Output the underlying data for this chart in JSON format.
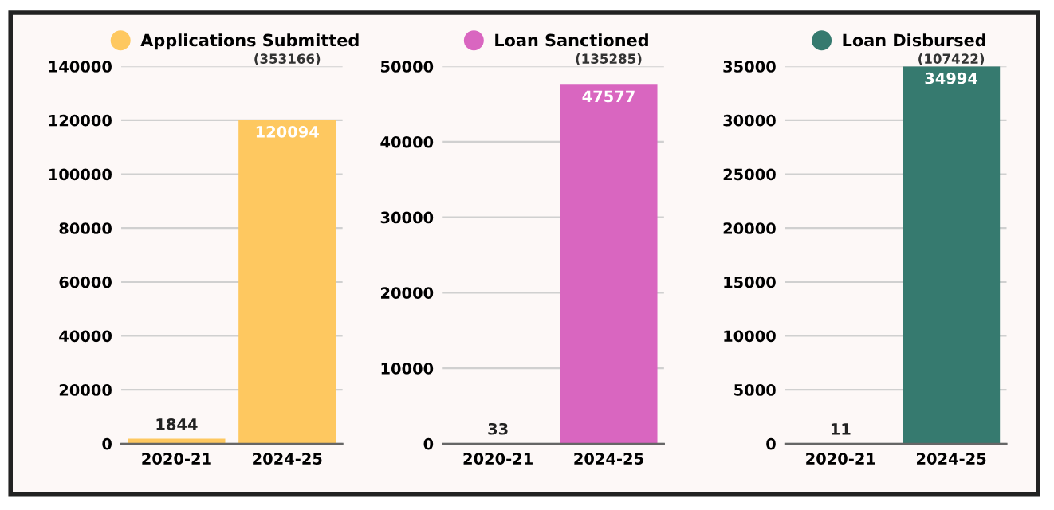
{
  "chart_data": [
    {
      "type": "bar",
      "categories": [
        "2020-21",
        "2024-25"
      ],
      "series": [
        {
          "name": "Applications Submitted",
          "color": "#fec860",
          "values": [
            1844,
            120094
          ]
        }
      ],
      "ylim": [
        0,
        140000
      ],
      "yticks": [
        0,
        20000,
        40000,
        60000,
        80000,
        100000,
        120000,
        140000
      ],
      "grid": "y",
      "legend": "top",
      "data_labels": true,
      "annotations": [
        "(353166)"
      ]
    },
    {
      "type": "bar",
      "categories": [
        "2020-21",
        "2024-25"
      ],
      "series": [
        {
          "name": "Loan Sanctioned",
          "color": "#d966c0",
          "values": [
            33,
            47577
          ]
        }
      ],
      "ylim": [
        0,
        50000
      ],
      "yticks": [
        0,
        10000,
        20000,
        30000,
        40000,
        50000
      ],
      "grid": "y",
      "legend": "top",
      "data_labels": true,
      "annotations": [
        "(135285)"
      ]
    },
    {
      "type": "bar",
      "categories": [
        "2020-21",
        "2024-25"
      ],
      "series": [
        {
          "name": "Loan Disbursed",
          "color": "#367a6f",
          "values": [
            11,
            34994
          ]
        }
      ],
      "ylim": [
        0,
        35000
      ],
      "yticks": [
        0,
        5000,
        10000,
        15000,
        20000,
        25000,
        30000,
        35000
      ],
      "grid": "y",
      "legend": "top",
      "data_labels": true,
      "annotations": [
        "(107422)"
      ]
    }
  ]
}
